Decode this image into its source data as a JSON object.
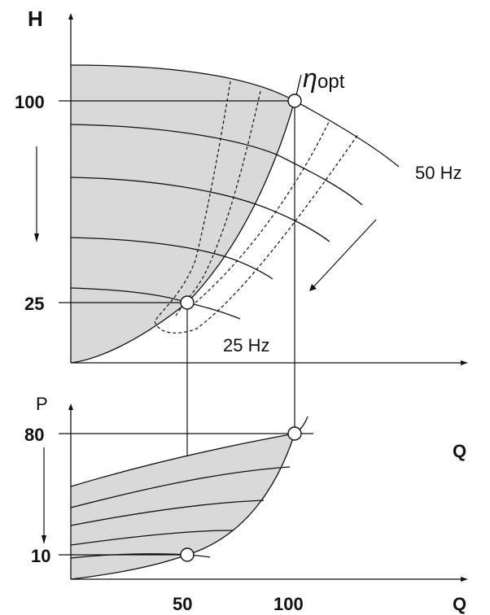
{
  "top_chart": {
    "y_axis_label": "H",
    "x_axis_label": "Q",
    "ticks": {
      "h100": "100",
      "h25": "25"
    },
    "label_50hz": "50 Hz",
    "label_25hz": "25 Hz",
    "eta_symbol": "η",
    "eta_sub": "opt"
  },
  "bottom_chart": {
    "y_axis_label": "P",
    "x_axis_label": "Q",
    "ticks": {
      "p80": "80",
      "p10": "10",
      "q50": "50",
      "q100": "100"
    }
  },
  "colors": {
    "shade": "#d9d9d9",
    "line": "#111111"
  },
  "chart_data": [
    {
      "type": "line",
      "title": "",
      "xlabel": "Q",
      "ylabel": "H",
      "series": [
        {
          "name": "50 Hz",
          "points": [
            [
              0,
              130
            ],
            [
              50,
              124
            ],
            [
              100,
              100
            ],
            [
              150,
              60
            ]
          ]
        },
        {
          "name": "25 Hz",
          "points": [
            [
              0,
              32
            ],
            [
              50,
              25
            ],
            [
              85,
              15
            ]
          ]
        }
      ],
      "operating_points": [
        [
          100,
          100
        ],
        [
          50,
          25
        ]
      ]
    },
    {
      "type": "line",
      "title": "",
      "xlabel": "Q",
      "ylabel": "P",
      "operating_points": [
        [
          100,
          80
        ],
        [
          50,
          10
        ]
      ]
    }
  ]
}
